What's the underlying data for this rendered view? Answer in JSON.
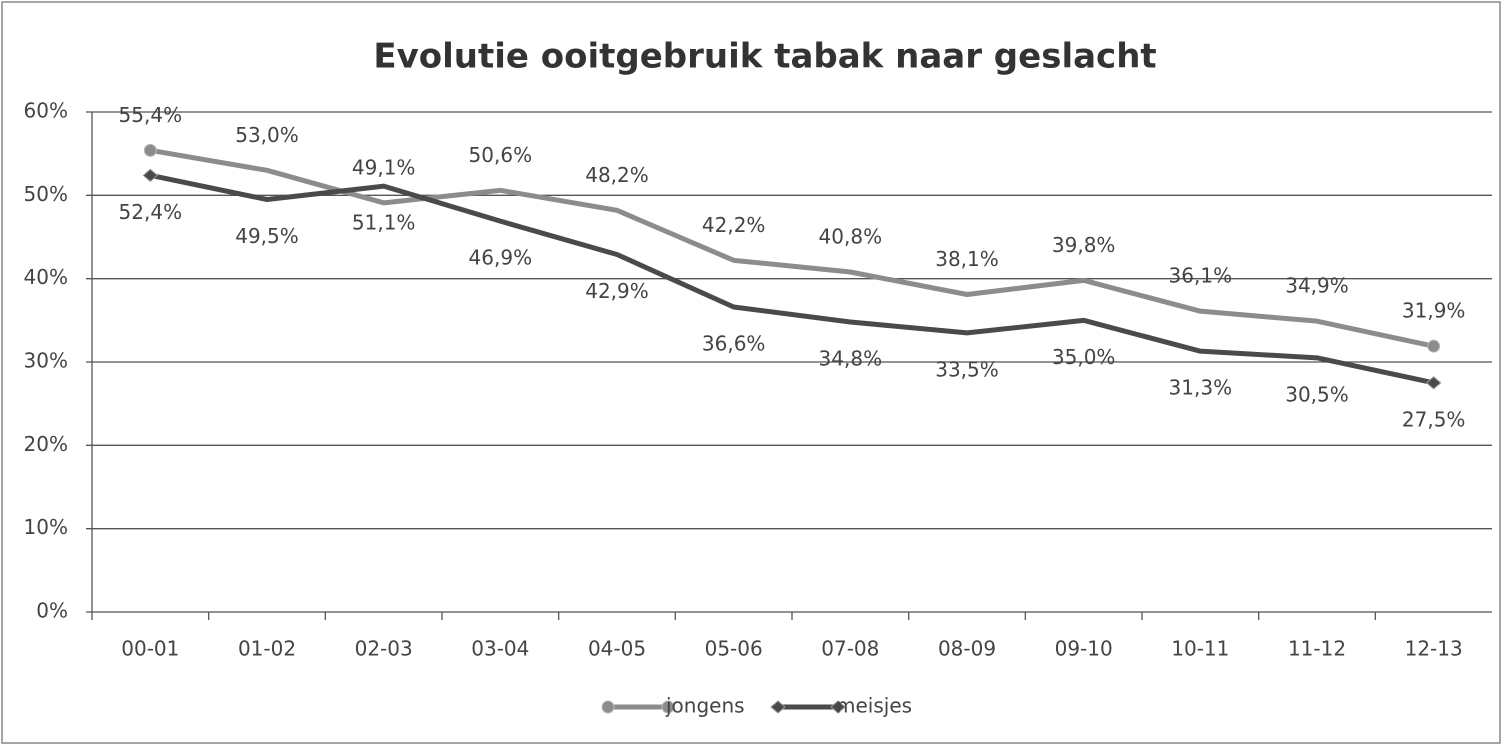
{
  "chart_data": {
    "type": "line",
    "title": "Evolutie ooitgebruik tabak naar geslacht",
    "categories": [
      "00-01",
      "01-02",
      "02-03",
      "03-04",
      "04-05",
      "05-06",
      "07-08",
      "08-09",
      "09-10",
      "10-11",
      "11-12",
      "12-13"
    ],
    "series": [
      {
        "name": "jongens",
        "color": "#8c8c8c",
        "marker": "circle",
        "values": [
          55.4,
          53.0,
          49.1,
          50.6,
          48.2,
          42.2,
          40.8,
          38.1,
          39.8,
          36.1,
          34.9,
          31.9
        ],
        "value_labels": [
          "55,4%",
          "53,0%",
          "49,1%",
          "50,6%",
          "48,2%",
          "42,2%",
          "40,8%",
          "38,1%",
          "39,8%",
          "36,1%",
          "34,9%",
          "31,9%"
        ]
      },
      {
        "name": "meisjes",
        "color": "#4a4a4a",
        "marker": "diamond",
        "values": [
          52.4,
          49.5,
          51.1,
          46.9,
          42.9,
          36.6,
          34.8,
          33.5,
          35.0,
          31.3,
          30.5,
          27.5
        ],
        "value_labels": [
          "52,4%",
          "49,5%",
          "51,1%",
          "46,9%",
          "42,9%",
          "36,6%",
          "34,8%",
          "33,5%",
          "35,0%",
          "31,3%",
          "30,5%",
          "27,5%"
        ]
      }
    ],
    "ylim": [
      0,
      60
    ],
    "yticks": [
      {
        "value": 0,
        "label": "0%"
      },
      {
        "value": 10,
        "label": "10%"
      },
      {
        "value": 20,
        "label": "20%"
      },
      {
        "value": 30,
        "label": "30%"
      },
      {
        "value": 40,
        "label": "40%"
      },
      {
        "value": 50,
        "label": "50%"
      },
      {
        "value": 60,
        "label": "60%"
      }
    ],
    "grid": true,
    "legend": "bottom"
  }
}
